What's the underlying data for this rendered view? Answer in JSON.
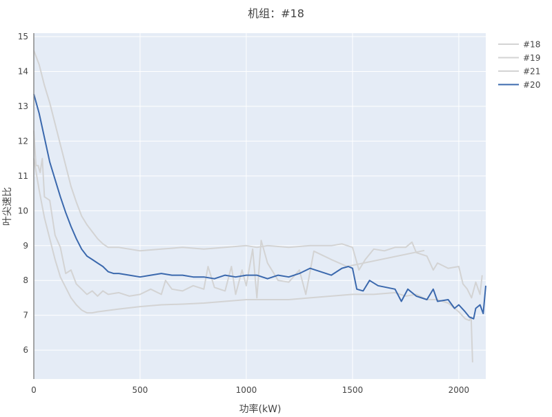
{
  "chart_data": {
    "type": "line",
    "title": "机组：#18",
    "xlabel": "功率(kW)",
    "ylabel": "叶尖速比",
    "xlim": [
      0,
      2127
    ],
    "ylim": [
      5.17,
      15.1
    ],
    "xticks": [
      0,
      500,
      1000,
      1500,
      2000
    ],
    "yticks": [
      6,
      7,
      8,
      9,
      10,
      11,
      12,
      13,
      14,
      15
    ],
    "grid": true,
    "legend_position": "top-right",
    "series": [
      {
        "name": "#18",
        "color": "#d3d3d3",
        "points": [
          [
            0,
            14.6
          ],
          [
            25,
            14.2
          ],
          [
            50,
            13.6
          ],
          [
            75,
            13.1
          ],
          [
            100,
            12.5
          ],
          [
            125,
            11.9
          ],
          [
            150,
            11.3
          ],
          [
            175,
            10.7
          ],
          [
            200,
            10.25
          ],
          [
            225,
            9.85
          ],
          [
            250,
            9.6
          ],
          [
            275,
            9.4
          ],
          [
            300,
            9.2
          ],
          [
            325,
            9.05
          ],
          [
            350,
            8.95
          ],
          [
            400,
            8.95
          ],
          [
            450,
            8.9
          ],
          [
            500,
            8.85
          ],
          [
            600,
            8.9
          ],
          [
            700,
            8.95
          ],
          [
            800,
            8.9
          ],
          [
            900,
            8.95
          ],
          [
            1000,
            9.0
          ],
          [
            1050,
            8.95
          ],
          [
            1100,
            9.0
          ],
          [
            1200,
            8.95
          ],
          [
            1300,
            9.0
          ],
          [
            1400,
            9.0
          ],
          [
            1450,
            9.05
          ],
          [
            1500,
            8.95
          ],
          [
            1530,
            8.3
          ],
          [
            1560,
            8.6
          ],
          [
            1600,
            8.9
          ],
          [
            1650,
            8.85
          ],
          [
            1700,
            8.95
          ],
          [
            1750,
            8.95
          ],
          [
            1780,
            9.1
          ],
          [
            1800,
            8.8
          ],
          [
            1850,
            8.7
          ],
          [
            1880,
            8.3
          ],
          [
            1900,
            8.5
          ],
          [
            1950,
            8.35
          ],
          [
            2000,
            8.4
          ],
          [
            2020,
            7.9
          ],
          [
            2040,
            7.75
          ],
          [
            2060,
            7.5
          ],
          [
            2080,
            7.95
          ],
          [
            2100,
            7.6
          ],
          [
            2110,
            8.15
          ]
        ]
      },
      {
        "name": "#19",
        "color": "#d3d3d3",
        "points": [
          [
            0,
            12.3
          ],
          [
            10,
            11.3
          ],
          [
            20,
            11.3
          ],
          [
            30,
            11.1
          ],
          [
            40,
            11.5
          ],
          [
            50,
            10.4
          ],
          [
            75,
            10.3
          ],
          [
            100,
            9.3
          ],
          [
            125,
            8.95
          ],
          [
            150,
            8.2
          ],
          [
            175,
            8.3
          ],
          [
            200,
            7.9
          ],
          [
            225,
            7.75
          ],
          [
            250,
            7.6
          ],
          [
            275,
            7.7
          ],
          [
            300,
            7.55
          ],
          [
            325,
            7.7
          ],
          [
            350,
            7.6
          ],
          [
            400,
            7.65
          ],
          [
            450,
            7.55
          ],
          [
            500,
            7.6
          ],
          [
            550,
            7.75
          ],
          [
            600,
            7.6
          ],
          [
            620,
            8.0
          ],
          [
            650,
            7.75
          ],
          [
            700,
            7.7
          ],
          [
            750,
            7.85
          ],
          [
            800,
            7.75
          ],
          [
            820,
            8.4
          ],
          [
            850,
            7.8
          ],
          [
            900,
            7.7
          ],
          [
            930,
            8.4
          ],
          [
            950,
            7.6
          ],
          [
            980,
            8.3
          ],
          [
            1000,
            7.85
          ],
          [
            1030,
            8.9
          ],
          [
            1050,
            7.5
          ],
          [
            1070,
            9.15
          ],
          [
            1100,
            8.5
          ],
          [
            1150,
            8.0
          ],
          [
            1200,
            7.95
          ],
          [
            1250,
            8.3
          ],
          [
            1280,
            7.6
          ],
          [
            1318,
            8.84
          ],
          [
            1400,
            8.6
          ],
          [
            1474,
            8.4
          ],
          [
            1838,
            8.86
          ]
        ]
      },
      {
        "name": "#21",
        "color": "#d3d3d3",
        "points": [
          [
            0,
            11.5
          ],
          [
            25,
            10.6
          ],
          [
            50,
            9.8
          ],
          [
            75,
            9.2
          ],
          [
            100,
            8.6
          ],
          [
            125,
            8.1
          ],
          [
            150,
            7.8
          ],
          [
            175,
            7.5
          ],
          [
            200,
            7.3
          ],
          [
            225,
            7.15
          ],
          [
            250,
            7.07
          ],
          [
            275,
            7.07
          ],
          [
            300,
            7.1
          ],
          [
            400,
            7.18
          ],
          [
            500,
            7.25
          ],
          [
            600,
            7.3
          ],
          [
            700,
            7.32
          ],
          [
            800,
            7.35
          ],
          [
            900,
            7.4
          ],
          [
            1000,
            7.45
          ],
          [
            1100,
            7.45
          ],
          [
            1200,
            7.45
          ],
          [
            1300,
            7.5
          ],
          [
            1400,
            7.55
          ],
          [
            1500,
            7.6
          ],
          [
            1600,
            7.6
          ],
          [
            1700,
            7.65
          ],
          [
            1750,
            7.55
          ],
          [
            1800,
            7.6
          ],
          [
            1850,
            7.45
          ],
          [
            1900,
            7.45
          ],
          [
            1950,
            7.35
          ],
          [
            2000,
            7.1
          ],
          [
            2030,
            6.9
          ],
          [
            2050,
            6.85
          ],
          [
            2058,
            6.95
          ],
          [
            2065,
            5.65
          ]
        ]
      },
      {
        "name": "#20",
        "color": "#3a68ad",
        "points": [
          [
            0,
            13.35
          ],
          [
            25,
            12.8
          ],
          [
            50,
            12.1
          ],
          [
            75,
            11.4
          ],
          [
            100,
            10.9
          ],
          [
            125,
            10.4
          ],
          [
            150,
            9.95
          ],
          [
            175,
            9.55
          ],
          [
            200,
            9.2
          ],
          [
            225,
            8.9
          ],
          [
            250,
            8.7
          ],
          [
            275,
            8.6
          ],
          [
            300,
            8.5
          ],
          [
            325,
            8.4
          ],
          [
            350,
            8.25
          ],
          [
            375,
            8.2
          ],
          [
            400,
            8.2
          ],
          [
            450,
            8.15
          ],
          [
            500,
            8.1
          ],
          [
            550,
            8.15
          ],
          [
            600,
            8.2
          ],
          [
            650,
            8.15
          ],
          [
            700,
            8.15
          ],
          [
            750,
            8.1
          ],
          [
            800,
            8.1
          ],
          [
            850,
            8.05
          ],
          [
            900,
            8.15
          ],
          [
            950,
            8.1
          ],
          [
            1000,
            8.15
          ],
          [
            1050,
            8.15
          ],
          [
            1100,
            8.05
          ],
          [
            1150,
            8.15
          ],
          [
            1200,
            8.1
          ],
          [
            1250,
            8.2
          ],
          [
            1300,
            8.35
          ],
          [
            1350,
            8.25
          ],
          [
            1400,
            8.15
          ],
          [
            1450,
            8.35
          ],
          [
            1480,
            8.4
          ],
          [
            1500,
            8.35
          ],
          [
            1520,
            7.75
          ],
          [
            1550,
            7.7
          ],
          [
            1580,
            8.0
          ],
          [
            1620,
            7.85
          ],
          [
            1660,
            7.8
          ],
          [
            1700,
            7.75
          ],
          [
            1730,
            7.4
          ],
          [
            1760,
            7.75
          ],
          [
            1800,
            7.55
          ],
          [
            1850,
            7.45
          ],
          [
            1880,
            7.75
          ],
          [
            1900,
            7.4
          ],
          [
            1950,
            7.45
          ],
          [
            1980,
            7.2
          ],
          [
            2000,
            7.3
          ],
          [
            2030,
            7.1
          ],
          [
            2050,
            6.95
          ],
          [
            2070,
            6.9
          ],
          [
            2080,
            7.2
          ],
          [
            2100,
            7.3
          ],
          [
            2115,
            7.05
          ],
          [
            2127,
            7.85
          ]
        ]
      }
    ]
  }
}
